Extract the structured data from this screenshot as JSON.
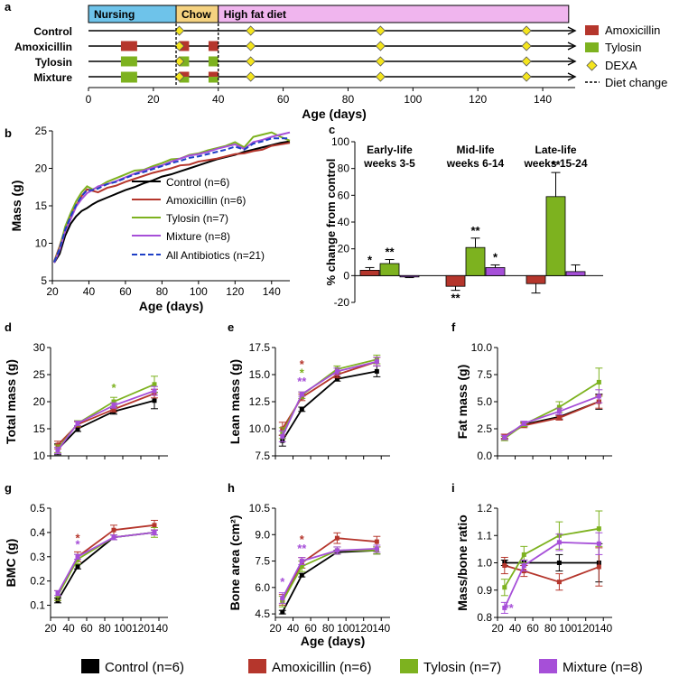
{
  "colors": {
    "control": "#000000",
    "amoxicillin": "#b5362c",
    "tylosin": "#7db21f",
    "mixture": "#a64fd8",
    "all": "#1e3fc6",
    "nursing": "#6ec3ea",
    "chow": "#f5d280",
    "hfd": "#f0b5ee",
    "dexa": "#f4e51e"
  },
  "legend_bottom": [
    {
      "label": "Control (n=6)",
      "color": "#000000"
    },
    {
      "label": "Amoxicillin (n=6)",
      "color": "#b5362c"
    },
    {
      "label": "Tylosin (n=7)",
      "color": "#7db21f"
    },
    {
      "label": "Mixture (n=8)",
      "color": "#a64fd8"
    }
  ],
  "chart_data": [
    {
      "panel": "a",
      "type": "timeline",
      "phases": [
        {
          "label": "Nursing",
          "start": 0,
          "end": 27,
          "color": "#6ec3ea"
        },
        {
          "label": "Chow",
          "start": 27,
          "end": 40,
          "color": "#f5d280"
        },
        {
          "label": "High fat diet",
          "start": 40,
          "end": 148,
          "color": "#f0b5ee"
        }
      ],
      "groups": [
        "Control",
        "Amoxicillin",
        "Tylosin",
        "Mixture"
      ],
      "treatments": {
        "Amoxicillin": {
          "color": "#b5362c",
          "intervals": [
            [
              10,
              15
            ],
            [
              28,
              31
            ],
            [
              37,
              40
            ]
          ]
        },
        "Tylosin": {
          "color": "#7db21f",
          "intervals": [
            [
              10,
              15
            ],
            [
              28,
              31
            ],
            [
              37,
              40
            ]
          ]
        },
        "Mixture": {
          "color": "#7db21f",
          "overlay": "#b5362c",
          "intervals": [
            [
              10,
              15
            ],
            [
              28,
              31
            ],
            [
              37,
              40
            ]
          ]
        }
      },
      "dexa_days": [
        28,
        50,
        90,
        135
      ],
      "diet_changes": [
        27,
        40
      ],
      "xlabel": "Age (days)",
      "xticks": [
        0,
        20,
        40,
        60,
        80,
        100,
        120,
        140
      ],
      "xlim": [
        0,
        150
      ],
      "legend": [
        "Amoxicillin",
        "Tylosin",
        "DEXA",
        "Diet change"
      ]
    },
    {
      "panel": "b",
      "type": "line",
      "ylabel": "Mass (g)",
      "xlabel": "Age (days)",
      "xlim": [
        20,
        150
      ],
      "ylim": [
        5,
        25
      ],
      "xticks": [
        20,
        40,
        60,
        80,
        100,
        120,
        140
      ],
      "yticks": [
        5,
        10,
        15,
        20,
        25
      ],
      "x": [
        21,
        24,
        27,
        30,
        33,
        36,
        39,
        42,
        45,
        50,
        55,
        60,
        65,
        70,
        75,
        80,
        85,
        90,
        95,
        100,
        105,
        110,
        115,
        120,
        125,
        130,
        135,
        140,
        145,
        150
      ],
      "series": [
        {
          "name": "Control (n=6)",
          "color": "#000000",
          "dashed": false,
          "values": [
            7.4,
            8.6,
            11.0,
            12.6,
            13.6,
            14.3,
            14.7,
            15.2,
            15.6,
            16.1,
            16.6,
            17.1,
            17.5,
            18.0,
            18.4,
            18.9,
            19.2,
            19.6,
            20.0,
            20.4,
            20.8,
            21.2,
            21.5,
            21.8,
            22.2,
            22.5,
            22.8,
            23.1,
            23.4,
            23.6
          ]
        },
        {
          "name": "Amoxicillin (n=6)",
          "color": "#b5362c",
          "dashed": false,
          "values": [
            7.6,
            9.6,
            12.0,
            13.8,
            15.0,
            16.3,
            17.2,
            17.0,
            16.8,
            17.4,
            17.7,
            18.2,
            18.6,
            19.0,
            19.4,
            19.7,
            20.0,
            20.4,
            20.5,
            20.9,
            21.1,
            21.3,
            21.6,
            21.9,
            22.0,
            22.3,
            22.5,
            23.0,
            23.2,
            23.4
          ]
        },
        {
          "name": "Tylosin (n=7)",
          "color": "#7db21f",
          "dashed": false,
          "values": [
            7.5,
            9.4,
            12.2,
            14.0,
            15.6,
            16.8,
            17.6,
            17.2,
            17.5,
            18.2,
            18.7,
            19.2,
            19.7,
            19.8,
            20.3,
            20.7,
            21.2,
            21.3,
            21.8,
            22.0,
            22.4,
            22.7,
            23.0,
            23.5,
            22.8,
            24.2,
            24.5,
            24.8,
            24.2,
            23.7
          ]
        },
        {
          "name": "Mixture (n=8)",
          "color": "#a64fd8",
          "dashed": false,
          "values": [
            7.4,
            9.1,
            11.6,
            13.2,
            14.9,
            15.9,
            16.7,
            17.1,
            17.6,
            17.9,
            18.3,
            18.8,
            19.3,
            19.7,
            20.1,
            20.4,
            20.9,
            21.3,
            21.7,
            21.9,
            22.2,
            22.6,
            22.9,
            23.2,
            22.6,
            23.5,
            23.8,
            24.2,
            24.5,
            24.8
          ]
        },
        {
          "name": "All Antibiotics (n=21)",
          "color": "#1e3fc6",
          "dashed": true,
          "values": [
            7.5,
            9.3,
            11.8,
            13.6,
            15.1,
            16.3,
            17.1,
            17.1,
            17.3,
            17.9,
            18.2,
            18.7,
            19.2,
            19.5,
            19.9,
            20.3,
            20.7,
            21.0,
            21.4,
            21.6,
            21.9,
            22.2,
            22.5,
            22.9,
            22.5,
            23.3,
            23.6,
            24.0,
            24.0,
            24.0
          ]
        }
      ]
    },
    {
      "panel": "c",
      "type": "bar",
      "ylabel": "% change from control",
      "ylim": [
        -20,
        100
      ],
      "yticks": [
        -20,
        0,
        20,
        40,
        60,
        80,
        100
      ],
      "categories": [
        "Early-life weeks 3-5",
        "Mid-life weeks 6-14",
        "Late-life weeks 15-24"
      ],
      "category_lines": [
        [
          "Early-life",
          "weeks 3-5"
        ],
        [
          "Mid-life",
          "weeks 6-14"
        ],
        [
          "Late-life",
          "weeks 15-24"
        ]
      ],
      "series": [
        {
          "name": "Amoxicillin",
          "color": "#b5362c",
          "values": [
            4,
            -8,
            -6
          ],
          "errors": [
            2,
            3,
            7
          ],
          "sig": [
            "*",
            "**",
            ""
          ]
        },
        {
          "name": "Tylosin",
          "color": "#7db21f",
          "values": [
            9,
            21,
            59
          ],
          "errors": [
            3,
            7,
            18
          ],
          "sig": [
            "**",
            "**",
            "**"
          ]
        },
        {
          "name": "Mixture",
          "color": "#a64fd8",
          "values": [
            -1,
            6,
            3
          ],
          "errors": [
            0.5,
            2,
            5
          ],
          "sig": [
            "",
            "*",
            ""
          ]
        }
      ]
    },
    {
      "panel": "d",
      "type": "line",
      "ylabel": "Total mass (g)",
      "xlabel": "",
      "xlim": [
        20,
        150
      ],
      "ylim": [
        10,
        30
      ],
      "yticks": [
        10,
        15,
        20,
        25,
        30
      ],
      "x": [
        28,
        50,
        90,
        135
      ],
      "series": [
        {
          "name": "Control",
          "color": "#000000",
          "values": [
            11.2,
            15.0,
            18.2,
            20.2
          ],
          "errors": [
            1.0,
            0.5,
            0.5,
            1.5
          ]
        },
        {
          "name": "Amoxicillin",
          "color": "#b5362c",
          "values": [
            12.0,
            15.8,
            18.6,
            21.5
          ],
          "errors": [
            0.7,
            0.5,
            0.5,
            0.8
          ]
        },
        {
          "name": "Tylosin",
          "color": "#7db21f",
          "values": [
            11.3,
            16.0,
            20.0,
            23.2
          ],
          "errors": [
            0.7,
            0.5,
            0.8,
            1.5
          ]
        },
        {
          "name": "Mixture",
          "color": "#a64fd8",
          "values": [
            11.0,
            16.0,
            19.3,
            22.0
          ],
          "errors": [
            0.6,
            0.4,
            0.5,
            0.8
          ]
        }
      ],
      "annotations": [
        {
          "x": 90,
          "y": 21.8,
          "text": "*",
          "color": "#7db21f"
        }
      ]
    },
    {
      "panel": "e",
      "type": "line",
      "ylabel": "Lean mass (g)",
      "xlabel": "",
      "xlim": [
        20,
        150
      ],
      "ylim": [
        7.5,
        17.5
      ],
      "yticks": [
        7.5,
        10.0,
        12.5,
        15.0,
        17.5
      ],
      "x": [
        28,
        50,
        90,
        135
      ],
      "series": [
        {
          "name": "Control",
          "color": "#000000",
          "values": [
            8.9,
            11.8,
            14.6,
            15.3
          ],
          "errors": [
            0.5,
            0.2,
            0.2,
            0.5
          ]
        },
        {
          "name": "Amoxicillin",
          "color": "#b5362c",
          "values": [
            10.0,
            12.9,
            15.0,
            16.2
          ],
          "errors": [
            0.6,
            0.3,
            0.3,
            0.4
          ]
        },
        {
          "name": "Tylosin",
          "color": "#7db21f",
          "values": [
            9.6,
            13.1,
            15.5,
            16.4
          ],
          "errors": [
            0.5,
            0.3,
            0.3,
            0.4
          ]
        },
        {
          "name": "Mixture",
          "color": "#a64fd8",
          "values": [
            9.3,
            13.2,
            15.3,
            16.2
          ],
          "errors": [
            0.5,
            0.2,
            0.3,
            0.4
          ]
        }
      ],
      "annotations": [
        {
          "x": 50,
          "y": 15.6,
          "text": "*",
          "color": "#b5362c"
        },
        {
          "x": 50,
          "y": 14.8,
          "text": "*",
          "color": "#7db21f"
        },
        {
          "x": 50,
          "y": 14.0,
          "text": "**",
          "color": "#a64fd8"
        }
      ]
    },
    {
      "panel": "f",
      "type": "line",
      "ylabel": "Fat mass (g)",
      "xlabel": "",
      "xlim": [
        20,
        150
      ],
      "ylim": [
        0,
        10
      ],
      "yticks": [
        0.0,
        2.5,
        5.0,
        7.5,
        10.0
      ],
      "x": [
        28,
        50,
        90,
        135
      ],
      "series": [
        {
          "name": "Control",
          "color": "#000000",
          "values": [
            1.8,
            2.9,
            3.6,
            5.0
          ],
          "errors": [
            0.2,
            0.2,
            0.2,
            0.7
          ]
        },
        {
          "name": "Amoxicillin",
          "color": "#b5362c",
          "values": [
            1.8,
            2.8,
            3.5,
            5.0
          ],
          "errors": [
            0.2,
            0.2,
            0.2,
            0.6
          ]
        },
        {
          "name": "Tylosin",
          "color": "#7db21f",
          "values": [
            1.6,
            2.9,
            4.5,
            6.8
          ],
          "errors": [
            0.2,
            0.2,
            0.5,
            1.3
          ]
        },
        {
          "name": "Mixture",
          "color": "#a64fd8",
          "values": [
            1.7,
            3.0,
            4.1,
            5.5
          ],
          "errors": [
            0.2,
            0.2,
            0.3,
            0.6
          ]
        }
      ],
      "annotations": []
    },
    {
      "panel": "g",
      "type": "line",
      "ylabel": "BMC (g)",
      "xlabel": "",
      "xlim": [
        20,
        150
      ],
      "ylim": [
        0.05,
        0.5
      ],
      "yticks": [
        0.1,
        0.2,
        0.3,
        0.4,
        0.5
      ],
      "xticks": [
        20,
        40,
        60,
        80,
        100,
        120,
        140
      ],
      "x": [
        28,
        50,
        90,
        135
      ],
      "series": [
        {
          "name": "Control",
          "color": "#000000",
          "values": [
            0.12,
            0.26,
            0.38,
            0.4
          ],
          "errors": [
            0.01,
            0.01,
            0.01,
            0.01
          ]
        },
        {
          "name": "Amoxicillin",
          "color": "#b5362c",
          "values": [
            0.14,
            0.3,
            0.41,
            0.43
          ],
          "errors": [
            0.02,
            0.02,
            0.02,
            0.02
          ]
        },
        {
          "name": "Tylosin",
          "color": "#7db21f",
          "values": [
            0.14,
            0.29,
            0.38,
            0.4
          ],
          "errors": [
            0.02,
            0.02,
            0.01,
            0.02
          ]
        },
        {
          "name": "Mixture",
          "color": "#a64fd8",
          "values": [
            0.15,
            0.3,
            0.38,
            0.4
          ],
          "errors": [
            0.01,
            0.01,
            0.01,
            0.01
          ]
        }
      ],
      "annotations": [
        {
          "x": 50,
          "y": 0.36,
          "text": "*",
          "color": "#b5362c"
        },
        {
          "x": 50,
          "y": 0.335,
          "text": "*",
          "color": "#a64fd8"
        }
      ]
    },
    {
      "panel": "h",
      "type": "line",
      "ylabel": "Bone area (cm²)",
      "xlabel": "Age (days)",
      "xlim": [
        20,
        150
      ],
      "ylim": [
        4.3,
        10.5
      ],
      "yticks": [
        4.5,
        6.0,
        7.5,
        9.0,
        10.5
      ],
      "xticks": [
        20,
        40,
        60,
        80,
        100,
        120,
        140
      ],
      "x": [
        28,
        50,
        90,
        135
      ],
      "series": [
        {
          "name": "Control",
          "color": "#000000",
          "values": [
            4.6,
            6.7,
            8.0,
            8.1
          ],
          "errors": [
            0.1,
            0.1,
            0.1,
            0.2
          ]
        },
        {
          "name": "Amoxicillin",
          "color": "#b5362c",
          "values": [
            5.3,
            7.4,
            8.8,
            8.6
          ],
          "errors": [
            0.3,
            0.3,
            0.3,
            0.3
          ]
        },
        {
          "name": "Tylosin",
          "color": "#7db21f",
          "values": [
            5.2,
            7.2,
            8.1,
            8.1
          ],
          "errors": [
            0.3,
            0.3,
            0.2,
            0.2
          ]
        },
        {
          "name": "Mixture",
          "color": "#a64fd8",
          "values": [
            5.4,
            7.5,
            8.1,
            8.2
          ],
          "errors": [
            0.3,
            0.2,
            0.2,
            0.2
          ]
        }
      ],
      "annotations": [
        {
          "x": 28,
          "y": 6.1,
          "text": "*",
          "color": "#a64fd8"
        },
        {
          "x": 50,
          "y": 8.5,
          "text": "*",
          "color": "#b5362c"
        },
        {
          "x": 50,
          "y": 8.0,
          "text": "**",
          "color": "#a64fd8"
        }
      ]
    },
    {
      "panel": "i",
      "type": "line",
      "ylabel": "Mass/bone ratio",
      "xlabel": "",
      "xlim": [
        20,
        150
      ],
      "ylim": [
        0.8,
        1.2
      ],
      "yticks": [
        0.8,
        0.9,
        "1.0",
        1.1,
        1.2
      ],
      "xticks": [
        20,
        40,
        60,
        80,
        100,
        120,
        140
      ],
      "x": [
        28,
        50,
        90,
        135
      ],
      "series": [
        {
          "name": "Control",
          "color": "#000000",
          "values": [
            1.0,
            1.0,
            1.0,
            1.0
          ],
          "errors": [
            0.01,
            0.01,
            0.03,
            0.07
          ]
        },
        {
          "name": "Amoxicillin",
          "color": "#b5362c",
          "values": [
            0.99,
            0.97,
            0.93,
            0.985
          ],
          "errors": [
            0.03,
            0.02,
            0.03,
            0.07
          ]
        },
        {
          "name": "Tylosin",
          "color": "#7db21f",
          "values": [
            0.91,
            1.03,
            1.1,
            1.125
          ],
          "errors": [
            0.03,
            0.03,
            0.05,
            0.065
          ]
        },
        {
          "name": "Mixture",
          "color": "#a64fd8",
          "values": [
            0.835,
            0.99,
            1.075,
            1.07
          ],
          "errors": [
            0.02,
            0.02,
            0.03,
            0.04
          ]
        }
      ],
      "annotations": [
        {
          "x": 33,
          "y": 0.82,
          "text": "**",
          "color": "#a64fd8"
        }
      ]
    }
  ]
}
